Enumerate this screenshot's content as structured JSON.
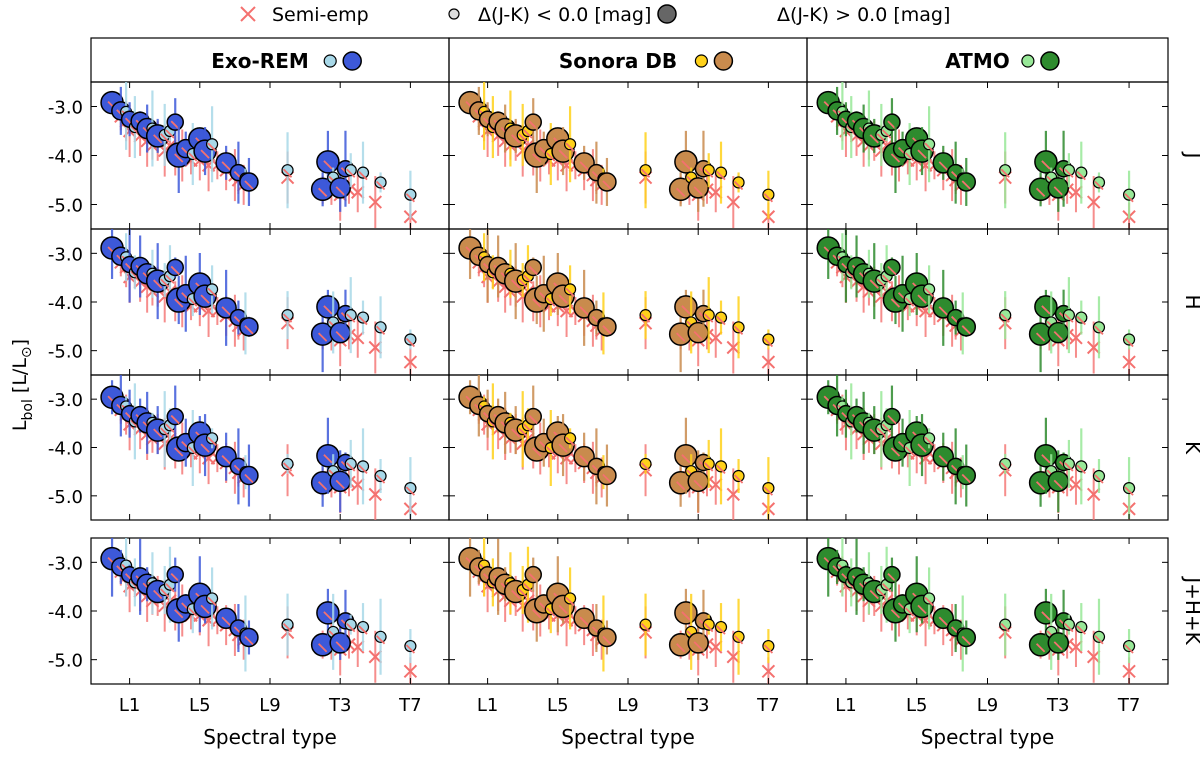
{
  "chart_data": {
    "type": "scatter",
    "legend": {
      "position": "top",
      "entries": [
        {
          "label": "Semi-emp",
          "marker": "x",
          "color": "#f4716f"
        },
        {
          "label": "Δ(J-K) < 0.0 [mag]",
          "marker": "small-circle",
          "color": "#dddddd"
        },
        {
          "label": "Δ(J-K) > 0.0 [mag]",
          "marker": "large-circle",
          "color": "#666666"
        }
      ]
    },
    "xlabel": "Spectral type",
    "ylabel_main": "L",
    "ylabel_sub": "bol",
    "ylabel_tail": " [L/L",
    "ylabel_sun": "⊙",
    "ylabel_close": "]",
    "x_ticks": [
      {
        "label": "L1",
        "value": 1
      },
      {
        "label": "L5",
        "value": 5
      },
      {
        "label": "L9",
        "value": 9
      },
      {
        "label": "T3",
        "value": 13
      },
      {
        "label": "T7",
        "value": 17
      }
    ],
    "xlim": [
      -1.2,
      19.2
    ],
    "y_ticks": [
      {
        "label": "-3.0",
        "value": -3.0
      },
      {
        "label": "-4.0",
        "value": -4.0
      },
      {
        "label": "-5.0",
        "value": -5.0
      }
    ],
    "ylim": [
      -5.5,
      -2.5
    ],
    "bands": [
      "J",
      "H",
      "K",
      "J+H+K"
    ],
    "models": [
      {
        "name": "Exo-REM",
        "color_low": "#a8d8e8",
        "color_high": "#3d59d9"
      },
      {
        "name": "Sonora DB",
        "color_low": "#ffd11a",
        "color_high": "#c98b4d"
      },
      {
        "name": "ATMO",
        "color_low": "#98e898",
        "color_high": "#2e8b2e"
      }
    ],
    "semi_empirical": [
      {
        "spt": 0.5,
        "lbol": -3.2
      },
      {
        "spt": 0.8,
        "lbol": -3.3
      },
      {
        "spt": 1.0,
        "lbol": -3.5
      },
      {
        "spt": 1.3,
        "lbol": -3.4
      },
      {
        "spt": 1.6,
        "lbol": -3.6
      },
      {
        "spt": 2.0,
        "lbol": -3.7
      },
      {
        "spt": 2.3,
        "lbol": -3.8
      },
      {
        "spt": 2.6,
        "lbol": -3.7
      },
      {
        "spt": 3.0,
        "lbol": -3.9
      },
      {
        "spt": 3.3,
        "lbol": -3.8
      },
      {
        "spt": 3.6,
        "lbol": -4.0
      },
      {
        "spt": 4.0,
        "lbol": -4.0
      },
      {
        "spt": 4.5,
        "lbol": -4.1
      },
      {
        "spt": 5.0,
        "lbol": -4.1
      },
      {
        "spt": 5.5,
        "lbol": -4.2
      },
      {
        "spt": 6.0,
        "lbol": -4.2
      },
      {
        "spt": 6.5,
        "lbol": -4.3
      },
      {
        "spt": 7.0,
        "lbol": -4.4
      },
      {
        "spt": 7.2,
        "lbol": -4.5
      },
      {
        "spt": 7.5,
        "lbol": -4.6
      },
      {
        "spt": 10.0,
        "lbol": -4.45
      },
      {
        "spt": 12.0,
        "lbol": -4.7
      },
      {
        "spt": 12.5,
        "lbol": -4.6
      },
      {
        "spt": 13.0,
        "lbol": -4.8
      },
      {
        "spt": 13.5,
        "lbol": -4.7
      },
      {
        "spt": 14.0,
        "lbol": -4.75
      },
      {
        "spt": 15.0,
        "lbol": -4.95
      },
      {
        "spt": 17.0,
        "lbol": -5.25
      }
    ],
    "objects": [
      {
        "spt": 0.0,
        "lbol": -2.98,
        "dy": 0.06,
        "high": true
      },
      {
        "spt": 0.5,
        "lbol": -3.15,
        "dy": 0.06,
        "high": true
      },
      {
        "spt": 0.8,
        "lbol": -3.05,
        "dy": -0.06,
        "high": false
      },
      {
        "spt": 1.0,
        "lbol": -3.3,
        "dy": 0.04,
        "high": true
      },
      {
        "spt": 1.3,
        "lbol": -3.45,
        "dy": 0.03,
        "high": false
      },
      {
        "spt": 1.6,
        "lbol": -3.35,
        "dy": 0.05,
        "high": true
      },
      {
        "spt": 2.0,
        "lbol": -3.5,
        "dy": 0.05,
        "high": true
      },
      {
        "spt": 2.3,
        "lbol": -3.45,
        "dy": 0.0,
        "high": false
      },
      {
        "spt": 2.6,
        "lbol": -3.65,
        "dy": 0.05,
        "high": true
      },
      {
        "spt": 3.0,
        "lbol": -3.6,
        "dy": 0.02,
        "high": false
      },
      {
        "spt": 3.3,
        "lbol": -3.45,
        "dy": -0.05,
        "high": false
      },
      {
        "spt": 3.6,
        "lbol": -3.2,
        "dy": -0.12,
        "high": true
      },
      {
        "spt": 3.8,
        "lbol": -4.05,
        "dy": 0.06,
        "high": true
      },
      {
        "spt": 4.2,
        "lbol": -3.9,
        "dy": 0.04,
        "high": true
      },
      {
        "spt": 4.6,
        "lbol": -4.0,
        "dy": 0.03,
        "high": false
      },
      {
        "spt": 5.0,
        "lbol": -3.7,
        "dy": 0.04,
        "high": true
      },
      {
        "spt": 5.3,
        "lbol": -3.95,
        "dy": 0.04,
        "high": true
      },
      {
        "spt": 5.7,
        "lbol": -3.75,
        "dy": -0.02,
        "high": false
      },
      {
        "spt": 6.5,
        "lbol": -4.2,
        "dy": 0.05,
        "high": true
      },
      {
        "spt": 7.2,
        "lbol": -4.4,
        "dy": 0.05,
        "high": true
      },
      {
        "spt": 7.6,
        "lbol": -4.5,
        "dy": 0.03,
        "high": false
      },
      {
        "spt": 7.8,
        "lbol": -4.6,
        "dy": 0.06,
        "high": true
      },
      {
        "spt": 10.0,
        "lbol": -4.3,
        "dy": 0.0,
        "high": false
      },
      {
        "spt": 12.0,
        "lbol": -4.75,
        "dy": 0.06,
        "high": true
      },
      {
        "spt": 12.3,
        "lbol": -3.95,
        "dy": -0.18,
        "high": true
      },
      {
        "spt": 12.6,
        "lbol": -4.45,
        "dy": 0.0,
        "high": false
      },
      {
        "spt": 13.0,
        "lbol": -4.7,
        "dy": 0.04,
        "high": true
      },
      {
        "spt": 13.3,
        "lbol": -4.15,
        "dy": -0.12,
        "high": true
      },
      {
        "spt": 13.6,
        "lbol": -4.3,
        "dy": 0.0,
        "high": false
      },
      {
        "spt": 14.3,
        "lbol": -4.35,
        "dy": 0.0,
        "high": false
      },
      {
        "spt": 15.3,
        "lbol": -4.55,
        "dy": 0.0,
        "high": false
      },
      {
        "spt": 17.0,
        "lbol": -4.65,
        "dy": -0.15,
        "high": false
      }
    ]
  }
}
